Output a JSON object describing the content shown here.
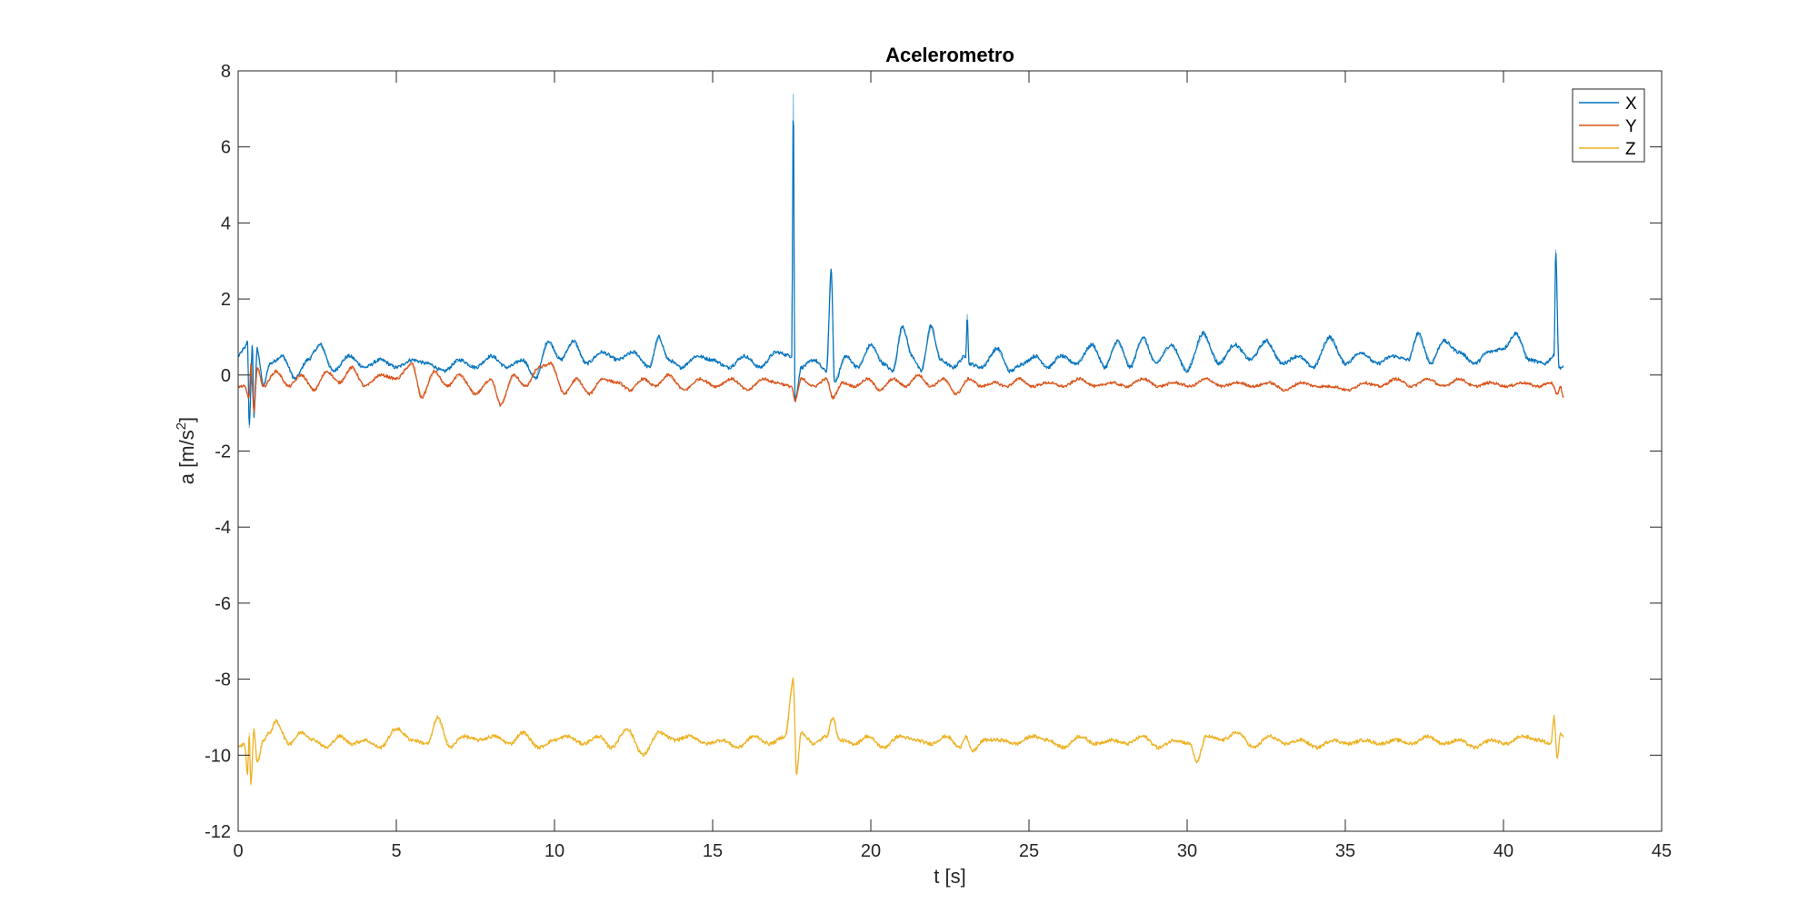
{
  "chart_data": {
    "type": "line",
    "title": "Acelerometro",
    "xlabel": "t [s]",
    "ylabel": {
      "base": "a [m/s",
      "sup": "2",
      "end": "]"
    },
    "xlim": [
      0,
      45
    ],
    "ylim": [
      -12,
      8
    ],
    "xticks": [
      "0",
      "5",
      "10",
      "15",
      "20",
      "25",
      "30",
      "35",
      "40",
      "45"
    ],
    "xtick_values": [
      0,
      5,
      10,
      15,
      20,
      25,
      30,
      35,
      40,
      45
    ],
    "yticks": [
      "-12",
      "-10",
      "-8",
      "-6",
      "-4",
      "-2",
      "0",
      "2",
      "4",
      "6",
      "8"
    ],
    "ytick_values": [
      -12,
      -10,
      -8,
      -6,
      -4,
      -2,
      0,
      2,
      4,
      6,
      8
    ],
    "grid": false,
    "legend_position": "top-right",
    "x_end": 41.9,
    "series": [
      {
        "name": "X",
        "color": "#0072BD",
        "keypoints": [
          [
            0,
            0.5
          ],
          [
            0.2,
            0.7
          ],
          [
            0.3,
            0.9
          ],
          [
            0.35,
            -1.4
          ],
          [
            0.45,
            0.8
          ],
          [
            0.5,
            -1.1
          ],
          [
            0.6,
            0.7
          ],
          [
            0.8,
            -0.3
          ],
          [
            1.0,
            0.3
          ],
          [
            1.4,
            0.5
          ],
          [
            1.8,
            -0.1
          ],
          [
            2.2,
            0.4
          ],
          [
            2.6,
            0.8
          ],
          [
            3.0,
            0.1
          ],
          [
            3.5,
            0.5
          ],
          [
            4.0,
            0.2
          ],
          [
            4.5,
            0.4
          ],
          [
            5,
            0.2
          ],
          [
            5.5,
            0.4
          ],
          [
            6,
            0.3
          ],
          [
            6.5,
            0.1
          ],
          [
            7,
            0.4
          ],
          [
            7.5,
            0.2
          ],
          [
            8,
            0.5
          ],
          [
            8.5,
            0.2
          ],
          [
            9,
            0.4
          ],
          [
            9.4,
            -0.1
          ],
          [
            9.8,
            0.9
          ],
          [
            10.2,
            0.4
          ],
          [
            10.6,
            0.9
          ],
          [
            11,
            0.3
          ],
          [
            11.5,
            0.6
          ],
          [
            12,
            0.4
          ],
          [
            12.5,
            0.6
          ],
          [
            13,
            0.2
          ],
          [
            13.3,
            1.0
          ],
          [
            13.6,
            0.4
          ],
          [
            14,
            0.2
          ],
          [
            14.5,
            0.5
          ],
          [
            15,
            0.4
          ],
          [
            15.5,
            0.2
          ],
          [
            16,
            0.5
          ],
          [
            16.5,
            0.2
          ],
          [
            17,
            0.6
          ],
          [
            17.5,
            0.5
          ],
          [
            17.55,
            7.4
          ],
          [
            17.6,
            -0.7
          ],
          [
            17.8,
            0.2
          ],
          [
            18.2,
            0.4
          ],
          [
            18.6,
            0.1
          ],
          [
            18.75,
            2.8
          ],
          [
            18.85,
            -0.2
          ],
          [
            19.2,
            0.5
          ],
          [
            19.6,
            0.2
          ],
          [
            20,
            0.8
          ],
          [
            20.4,
            0.3
          ],
          [
            20.7,
            0.1
          ],
          [
            21,
            1.3
          ],
          [
            21.3,
            0.5
          ],
          [
            21.6,
            0.1
          ],
          [
            21.9,
            1.3
          ],
          [
            22.2,
            0.4
          ],
          [
            22.6,
            0.2
          ],
          [
            23.0,
            0.5
          ],
          [
            23.05,
            1.6
          ],
          [
            23.1,
            0.3
          ],
          [
            23.5,
            0.2
          ],
          [
            24,
            0.7
          ],
          [
            24.4,
            0.1
          ],
          [
            24.8,
            0.3
          ],
          [
            25.2,
            0.5
          ],
          [
            25.6,
            0.2
          ],
          [
            26,
            0.5
          ],
          [
            26.5,
            0.3
          ],
          [
            27,
            0.8
          ],
          [
            27.4,
            0.2
          ],
          [
            27.8,
            0.9
          ],
          [
            28.2,
            0.2
          ],
          [
            28.6,
            1.0
          ],
          [
            29,
            0.3
          ],
          [
            29.5,
            0.8
          ],
          [
            30,
            0.1
          ],
          [
            30.5,
            1.1
          ],
          [
            31,
            0.3
          ],
          [
            31.5,
            0.8
          ],
          [
            32,
            0.4
          ],
          [
            32.5,
            0.9
          ],
          [
            33,
            0.3
          ],
          [
            33.5,
            0.5
          ],
          [
            34,
            0.2
          ],
          [
            34.5,
            1.0
          ],
          [
            35,
            0.3
          ],
          [
            35.5,
            0.6
          ],
          [
            36,
            0.3
          ],
          [
            36.5,
            0.5
          ],
          [
            37,
            0.4
          ],
          [
            37.3,
            1.1
          ],
          [
            37.7,
            0.3
          ],
          [
            38.1,
            0.9
          ],
          [
            38.6,
            0.6
          ],
          [
            39.1,
            0.3
          ],
          [
            39.5,
            0.6
          ],
          [
            40,
            0.7
          ],
          [
            40.4,
            1.1
          ],
          [
            40.8,
            0.4
          ],
          [
            41.3,
            0.3
          ],
          [
            41.6,
            0.5
          ],
          [
            41.65,
            3.3
          ],
          [
            41.75,
            0.2
          ],
          [
            41.9,
            0.2
          ]
        ]
      },
      {
        "name": "Y",
        "color": "#D95319",
        "keypoints": [
          [
            0,
            -0.3
          ],
          [
            0.2,
            -0.3
          ],
          [
            0.35,
            -0.6
          ],
          [
            0.4,
            0.3
          ],
          [
            0.5,
            -1.0
          ],
          [
            0.6,
            0.2
          ],
          [
            0.8,
            -0.3
          ],
          [
            1.2,
            0.1
          ],
          [
            1.6,
            -0.3
          ],
          [
            2.0,
            0.0
          ],
          [
            2.4,
            -0.4
          ],
          [
            2.8,
            0.1
          ],
          [
            3.2,
            -0.2
          ],
          [
            3.6,
            0.2
          ],
          [
            4.0,
            -0.3
          ],
          [
            4.5,
            0.0
          ],
          [
            5,
            -0.1
          ],
          [
            5.5,
            0.3
          ],
          [
            5.8,
            -0.6
          ],
          [
            6.2,
            0.1
          ],
          [
            6.6,
            -0.3
          ],
          [
            7,
            0.0
          ],
          [
            7.5,
            -0.5
          ],
          [
            8,
            -0.1
          ],
          [
            8.3,
            -0.8
          ],
          [
            8.7,
            0.0
          ],
          [
            9.1,
            -0.3
          ],
          [
            9.5,
            0.2
          ],
          [
            9.9,
            0.3
          ],
          [
            10.3,
            -0.5
          ],
          [
            10.7,
            -0.1
          ],
          [
            11.1,
            -0.5
          ],
          [
            11.5,
            -0.1
          ],
          [
            12,
            -0.2
          ],
          [
            12.4,
            -0.4
          ],
          [
            12.8,
            -0.1
          ],
          [
            13.2,
            -0.3
          ],
          [
            13.6,
            0.0
          ],
          [
            14.1,
            -0.4
          ],
          [
            14.6,
            -0.1
          ],
          [
            15.1,
            -0.3
          ],
          [
            15.6,
            -0.1
          ],
          [
            16.1,
            -0.4
          ],
          [
            16.6,
            -0.1
          ],
          [
            17.0,
            -0.2
          ],
          [
            17.5,
            -0.3
          ],
          [
            17.6,
            -0.7
          ],
          [
            17.8,
            -0.1
          ],
          [
            18.2,
            -0.3
          ],
          [
            18.6,
            -0.1
          ],
          [
            18.8,
            -0.6
          ],
          [
            19.1,
            -0.2
          ],
          [
            19.5,
            -0.3
          ],
          [
            19.9,
            -0.1
          ],
          [
            20.3,
            -0.4
          ],
          [
            20.7,
            -0.1
          ],
          [
            21.1,
            -0.3
          ],
          [
            21.5,
            0.0
          ],
          [
            21.9,
            -0.3
          ],
          [
            22.3,
            -0.1
          ],
          [
            22.7,
            -0.5
          ],
          [
            23.1,
            -0.1
          ],
          [
            23.5,
            -0.3
          ],
          [
            23.9,
            -0.2
          ],
          [
            24.3,
            -0.3
          ],
          [
            24.7,
            -0.1
          ],
          [
            25.1,
            -0.3
          ],
          [
            25.6,
            -0.2
          ],
          [
            26.1,
            -0.3
          ],
          [
            26.6,
            -0.1
          ],
          [
            27.1,
            -0.3
          ],
          [
            27.6,
            -0.2
          ],
          [
            28.1,
            -0.3
          ],
          [
            28.6,
            -0.1
          ],
          [
            29.1,
            -0.3
          ],
          [
            29.6,
            -0.2
          ],
          [
            30.1,
            -0.3
          ],
          [
            30.6,
            -0.1
          ],
          [
            31.1,
            -0.3
          ],
          [
            31.6,
            -0.2
          ],
          [
            32.1,
            -0.3
          ],
          [
            32.6,
            -0.2
          ],
          [
            33.1,
            -0.4
          ],
          [
            33.6,
            -0.2
          ],
          [
            34.1,
            -0.3
          ],
          [
            34.6,
            -0.3
          ],
          [
            35.1,
            -0.4
          ],
          [
            35.6,
            -0.2
          ],
          [
            36.1,
            -0.3
          ],
          [
            36.6,
            -0.1
          ],
          [
            37.1,
            -0.3
          ],
          [
            37.6,
            -0.1
          ],
          [
            38.1,
            -0.3
          ],
          [
            38.6,
            -0.1
          ],
          [
            39.1,
            -0.3
          ],
          [
            39.6,
            -0.2
          ],
          [
            40.1,
            -0.3
          ],
          [
            40.6,
            -0.2
          ],
          [
            41.1,
            -0.3
          ],
          [
            41.5,
            -0.2
          ],
          [
            41.7,
            -0.5
          ],
          [
            41.8,
            -0.3
          ],
          [
            41.9,
            -0.6
          ]
        ]
      },
      {
        "name": "Z",
        "color": "#EDB120",
        "keypoints": [
          [
            0,
            -9.8
          ],
          [
            0.2,
            -9.7
          ],
          [
            0.3,
            -10.5
          ],
          [
            0.35,
            -9.4
          ],
          [
            0.4,
            -10.8
          ],
          [
            0.5,
            -9.3
          ],
          [
            0.6,
            -10.2
          ],
          [
            0.8,
            -9.6
          ],
          [
            1.0,
            -9.4
          ],
          [
            1.2,
            -9.1
          ],
          [
            1.6,
            -9.7
          ],
          [
            2.0,
            -9.4
          ],
          [
            2.4,
            -9.6
          ],
          [
            2.8,
            -9.8
          ],
          [
            3.2,
            -9.5
          ],
          [
            3.6,
            -9.7
          ],
          [
            4.0,
            -9.6
          ],
          [
            4.5,
            -9.8
          ],
          [
            5,
            -9.3
          ],
          [
            5.5,
            -9.6
          ],
          [
            6,
            -9.7
          ],
          [
            6.3,
            -9.0
          ],
          [
            6.7,
            -9.8
          ],
          [
            7.1,
            -9.5
          ],
          [
            7.6,
            -9.6
          ],
          [
            8.1,
            -9.5
          ],
          [
            8.6,
            -9.7
          ],
          [
            9.0,
            -9.4
          ],
          [
            9.5,
            -9.8
          ],
          [
            10,
            -9.6
          ],
          [
            10.4,
            -9.5
          ],
          [
            10.9,
            -9.7
          ],
          [
            11.4,
            -9.5
          ],
          [
            11.8,
            -9.8
          ],
          [
            12.3,
            -9.3
          ],
          [
            12.8,
            -10.0
          ],
          [
            13.3,
            -9.4
          ],
          [
            13.8,
            -9.6
          ],
          [
            14.3,
            -9.5
          ],
          [
            14.8,
            -9.7
          ],
          [
            15.3,
            -9.6
          ],
          [
            15.8,
            -9.8
          ],
          [
            16.3,
            -9.5
          ],
          [
            16.8,
            -9.7
          ],
          [
            17.3,
            -9.5
          ],
          [
            17.55,
            -8.0
          ],
          [
            17.65,
            -10.5
          ],
          [
            17.8,
            -9.4
          ],
          [
            18.2,
            -9.7
          ],
          [
            18.6,
            -9.5
          ],
          [
            18.8,
            -9.0
          ],
          [
            19.0,
            -9.6
          ],
          [
            19.5,
            -9.7
          ],
          [
            19.9,
            -9.5
          ],
          [
            20.4,
            -9.8
          ],
          [
            20.9,
            -9.5
          ],
          [
            21.4,
            -9.6
          ],
          [
            21.9,
            -9.7
          ],
          [
            22.4,
            -9.5
          ],
          [
            22.8,
            -9.8
          ],
          [
            23.0,
            -9.5
          ],
          [
            23.2,
            -9.9
          ],
          [
            23.6,
            -9.6
          ],
          [
            24.1,
            -9.6
          ],
          [
            24.6,
            -9.7
          ],
          [
            25.1,
            -9.5
          ],
          [
            25.6,
            -9.6
          ],
          [
            26.1,
            -9.8
          ],
          [
            26.6,
            -9.5
          ],
          [
            27.1,
            -9.7
          ],
          [
            27.6,
            -9.6
          ],
          [
            28.1,
            -9.7
          ],
          [
            28.6,
            -9.5
          ],
          [
            29.1,
            -9.8
          ],
          [
            29.6,
            -9.6
          ],
          [
            30.1,
            -9.7
          ],
          [
            30.3,
            -10.2
          ],
          [
            30.6,
            -9.5
          ],
          [
            31.1,
            -9.6
          ],
          [
            31.6,
            -9.4
          ],
          [
            32.1,
            -9.8
          ],
          [
            32.6,
            -9.5
          ],
          [
            33.1,
            -9.7
          ],
          [
            33.6,
            -9.6
          ],
          [
            34.1,
            -9.8
          ],
          [
            34.6,
            -9.6
          ],
          [
            35.1,
            -9.7
          ],
          [
            35.6,
            -9.6
          ],
          [
            36.1,
            -9.7
          ],
          [
            36.6,
            -9.6
          ],
          [
            37.1,
            -9.7
          ],
          [
            37.6,
            -9.5
          ],
          [
            38.1,
            -9.7
          ],
          [
            38.6,
            -9.6
          ],
          [
            39.1,
            -9.8
          ],
          [
            39.6,
            -9.6
          ],
          [
            40.1,
            -9.7
          ],
          [
            40.6,
            -9.5
          ],
          [
            41.1,
            -9.6
          ],
          [
            41.5,
            -9.7
          ],
          [
            41.6,
            -9.0
          ],
          [
            41.7,
            -10.1
          ],
          [
            41.8,
            -9.4
          ],
          [
            41.9,
            -9.5
          ]
        ]
      }
    ]
  }
}
